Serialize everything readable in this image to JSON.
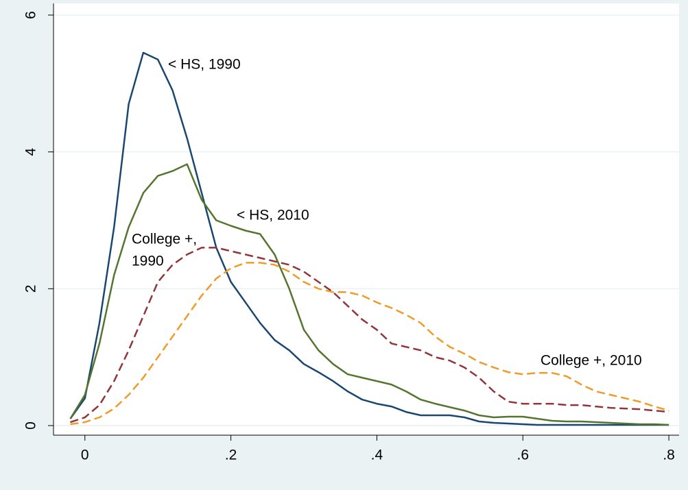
{
  "chart_data": {
    "type": "line",
    "x": [
      -0.02,
      0,
      0.02,
      0.04,
      0.06,
      0.08,
      0.1,
      0.12,
      0.14,
      0.16,
      0.18,
      0.2,
      0.22,
      0.24,
      0.26,
      0.28,
      0.3,
      0.32,
      0.34,
      0.36,
      0.38,
      0.4,
      0.42,
      0.44,
      0.46,
      0.48,
      0.5,
      0.52,
      0.54,
      0.56,
      0.58,
      0.6,
      0.62,
      0.64,
      0.66,
      0.68,
      0.7,
      0.72,
      0.74,
      0.76,
      0.78,
      0.8
    ],
    "series": [
      {
        "label_lines": [
          "< HS, 1990"
        ],
        "color": "#1a476f",
        "dashed": false,
        "values": [
          0.1,
          0.4,
          1.5,
          2.9,
          4.7,
          5.45,
          5.35,
          4.9,
          4.2,
          3.4,
          2.6,
          2.1,
          1.8,
          1.5,
          1.25,
          1.1,
          0.9,
          0.78,
          0.65,
          0.5,
          0.38,
          0.32,
          0.28,
          0.2,
          0.15,
          0.15,
          0.15,
          0.12,
          0.06,
          0.04,
          0.03,
          0.02,
          0.01,
          0.01,
          0.01,
          0.01,
          0.01,
          0.01,
          0.01,
          0.01,
          0.01,
          0.01
        ]
      },
      {
        "label_lines": [
          "< HS, 2010"
        ],
        "color": "#55752f",
        "dashed": false,
        "values": [
          0.1,
          0.45,
          1.2,
          2.2,
          2.9,
          3.4,
          3.65,
          3.72,
          3.82,
          3.3,
          3.0,
          2.92,
          2.85,
          2.8,
          2.5,
          2.0,
          1.4,
          1.1,
          0.9,
          0.75,
          0.7,
          0.65,
          0.6,
          0.5,
          0.38,
          0.32,
          0.27,
          0.22,
          0.15,
          0.12,
          0.13,
          0.13,
          0.1,
          0.07,
          0.06,
          0.06,
          0.05,
          0.04,
          0.03,
          0.02,
          0.02,
          0.01
        ]
      },
      {
        "label_lines": [
          "College +,",
          "1990"
        ],
        "color": "#90353b",
        "dashed": true,
        "values": [
          0.05,
          0.12,
          0.3,
          0.65,
          1.1,
          1.6,
          2.1,
          2.35,
          2.5,
          2.6,
          2.6,
          2.55,
          2.5,
          2.45,
          2.4,
          2.35,
          2.25,
          2.1,
          1.95,
          1.75,
          1.55,
          1.4,
          1.2,
          1.15,
          1.1,
          1.0,
          0.95,
          0.85,
          0.7,
          0.5,
          0.35,
          0.32,
          0.32,
          0.32,
          0.3,
          0.3,
          0.28,
          0.26,
          0.25,
          0.24,
          0.22,
          0.2
        ]
      },
      {
        "label_lines": [
          "College +, 2010"
        ],
        "color": "#f09a28",
        "dashed": true,
        "values": [
          0.02,
          0.05,
          0.12,
          0.25,
          0.45,
          0.7,
          1.0,
          1.3,
          1.6,
          1.9,
          2.15,
          2.3,
          2.38,
          2.38,
          2.35,
          2.25,
          2.1,
          2.0,
          1.95,
          1.95,
          1.9,
          1.8,
          1.72,
          1.62,
          1.5,
          1.3,
          1.15,
          1.05,
          0.93,
          0.85,
          0.78,
          0.75,
          0.77,
          0.77,
          0.72,
          0.6,
          0.5,
          0.45,
          0.4,
          0.35,
          0.28,
          0.22
        ]
      }
    ],
    "xlim": [
      -0.043,
      0.814
    ],
    "ylim": [
      -0.14,
      6.17
    ],
    "xticks": [
      0,
      {
        "value": 0.2,
        "label": ".2"
      },
      {
        "value": 0.4,
        "label": ".4"
      },
      {
        "value": 0.6,
        "label": ".6"
      },
      {
        "value": 0.8,
        "label": ".8"
      }
    ],
    "yticks": [
      0,
      2,
      4,
      6
    ],
    "grid": true
  }
}
